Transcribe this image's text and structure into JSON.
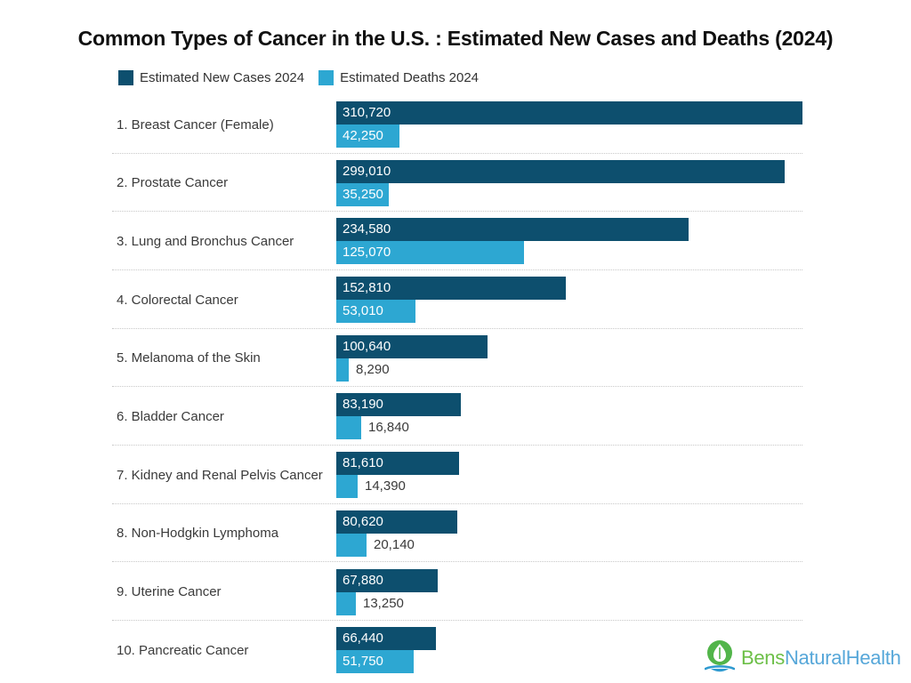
{
  "title": "Common Types of Cancer in the U.S. : Estimated New Cases and Deaths (2024)",
  "legend": {
    "items": [
      {
        "label": "Estimated New Cases 2024",
        "color": "#0d4f6e"
      },
      {
        "label": "Estimated Deaths 2024",
        "color": "#2da7d2"
      }
    ]
  },
  "chart_data": {
    "type": "bar",
    "orientation": "horizontal",
    "title": "Common Types of Cancer in the U.S. : Estimated New Cases and Deaths (2024)",
    "categories": [
      "1. Breast Cancer (Female)",
      "2. Prostate Cancer",
      "3. Lung and Bronchus Cancer",
      "4. Colorectal Cancer",
      "5. Melanoma of the Skin",
      "6. Bladder Cancer",
      "7. Kidney and Renal Pelvis Cancer",
      "8. Non-Hodgkin Lymphoma",
      "9. Uterine Cancer",
      "10. Pancreatic Cancer"
    ],
    "series": [
      {
        "name": "Estimated New Cases 2024",
        "color": "#0d4f6e",
        "values": [
          310720,
          299010,
          234580,
          152810,
          100640,
          83190,
          81610,
          80620,
          67880,
          66440
        ],
        "labels": [
          "310,720",
          "299,010",
          "234,580",
          "152,810",
          "100,640",
          "83,190",
          "81,610",
          "80,620",
          "67,880",
          "66,440"
        ]
      },
      {
        "name": "Estimated Deaths 2024",
        "color": "#2da7d2",
        "values": [
          42250,
          35250,
          125070,
          53010,
          8290,
          16840,
          14390,
          20140,
          13250,
          51750
        ],
        "labels": [
          "42,250",
          "35,250",
          "125,070",
          "53,010",
          "8,290",
          "16,840",
          "14,390",
          "20,140",
          "13,250",
          "51,750"
        ]
      }
    ],
    "xlim": [
      0,
      310720
    ],
    "grid": false,
    "legend_position": "top-left",
    "xlabel": "",
    "ylabel": ""
  },
  "logo": {
    "text_primary": "Bens",
    "text_secondary": "NaturalHealth",
    "color_primary": "#6cbf47",
    "color_secondary": "#56a7d9",
    "icon_green": "#52b54a",
    "icon_blue": "#2f9ad0"
  },
  "colors": {
    "background": "#ffffff",
    "label_text": "#3a3a3a",
    "separator": "#c8c8c8",
    "bar_value_inside": "#ffffff",
    "bar_value_outside": "#3a3a3a",
    "title_text": "#101010"
  }
}
